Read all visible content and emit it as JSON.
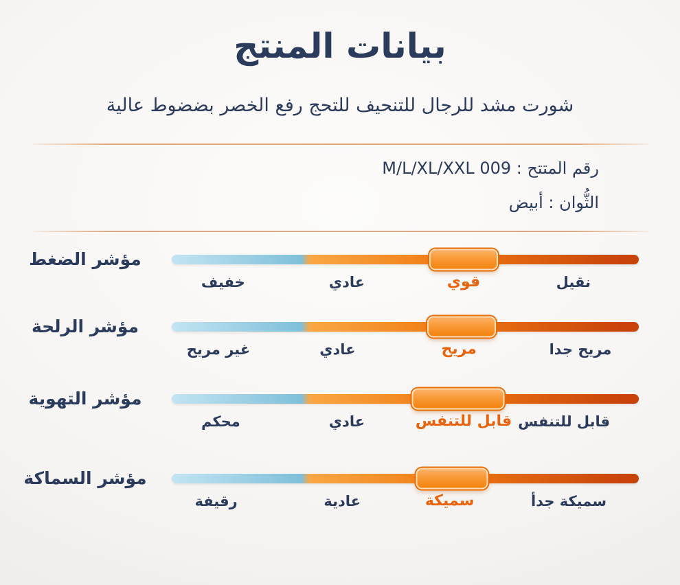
{
  "header": {
    "title": "بيانات المنتج",
    "subtitle": "شورت مشد للرجال للتنحيف للتحج رفع الخصر بضضوط عالية"
  },
  "product_info": {
    "product_number_line": "رقم المتتح : 009 M/L/XL/XXL",
    "colors_line": "الثُّوان : أبيض"
  },
  "theme": {
    "navy": "#2b3b5c",
    "orange": "#e8640c",
    "orange_deep": "#e76d05",
    "divider": "#e2a97e",
    "track_blue_light": "#c3e4f2",
    "track_blue": "#7fc0da",
    "track_orange_light": "#f9a845",
    "track_orange": "#f17c14",
    "track_red": "#c8430a",
    "handle_top": "#fdb269",
    "handle_bottom": "#f2830f"
  },
  "sliders": [
    {
      "name": "مؤشر الضغط",
      "value_pct": 62.5,
      "handle_width": 100,
      "blue_end_pct": 28.7,
      "labels": [
        {
          "text": "خفيف",
          "pos_pct": 11,
          "active": false
        },
        {
          "text": "عادي",
          "pos_pct": 37.5,
          "active": false
        },
        {
          "text": "قوي",
          "pos_pct": 62.5,
          "active": true
        },
        {
          "text": "نقيل",
          "pos_pct": 86,
          "active": false
        }
      ]
    },
    {
      "name": "مؤشر الرلحة",
      "value_pct": 62,
      "handle_width": 100,
      "blue_end_pct": 28.7,
      "labels": [
        {
          "text": "غير مريح",
          "pos_pct": 10,
          "active": false
        },
        {
          "text": "عادي",
          "pos_pct": 35.5,
          "active": false
        },
        {
          "text": "مريح",
          "pos_pct": 61.5,
          "active": true
        },
        {
          "text": "مريح جدا",
          "pos_pct": 87.5,
          "active": false
        }
      ]
    },
    {
      "name": "مؤشر التهوية",
      "value_pct": 61.3,
      "handle_width": 135,
      "blue_end_pct": 28.7,
      "labels": [
        {
          "text": "محكم",
          "pos_pct": 10.5,
          "active": false
        },
        {
          "text": "عادي",
          "pos_pct": 37.5,
          "active": false
        },
        {
          "text": "قابل للتنفس",
          "pos_pct": 62.5,
          "active": true
        },
        {
          "text": "قابل للتنفس",
          "pos_pct": 84,
          "active": false
        }
      ]
    },
    {
      "name": "مؤشر السماكة",
      "value_pct": 60,
      "handle_width": 105,
      "blue_end_pct": 28.7,
      "labels": [
        {
          "text": "رقيفة",
          "pos_pct": 9.5,
          "active": false
        },
        {
          "text": "عادية",
          "pos_pct": 36.5,
          "active": false
        },
        {
          "text": "سميكة",
          "pos_pct": 59.5,
          "active": true
        },
        {
          "text": "سميكة جدأ",
          "pos_pct": 85,
          "active": false
        }
      ]
    }
  ]
}
